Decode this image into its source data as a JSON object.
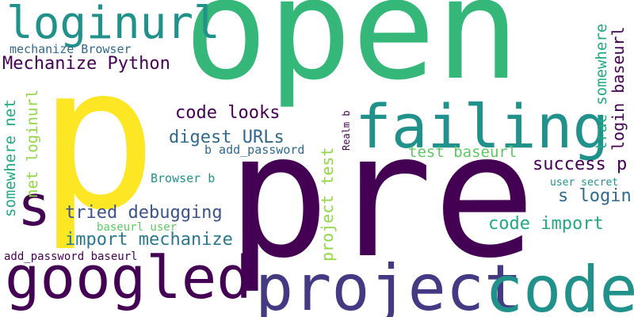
{
  "words": {
    "open": "open",
    "pre": "pre",
    "p": "p",
    "googled": "googled",
    "project": "project",
    "code": "code",
    "failing": "failing",
    "loginurl": "loginurl",
    "s": "s",
    "mechanize_python": "Mechanize Python",
    "mechanize_browser": "mechanize Browser",
    "code_looks": "code looks",
    "digest_urls": "digest URLs",
    "tried_debugging": "tried debugging",
    "import_mechanize": "import mechanize",
    "baseurl_user": "baseurl user",
    "add_password_baseurl": "add_password baseurl",
    "browser_b": "Browser b",
    "b_add_password": "b add_password",
    "test_baseurl": "test baseurl",
    "success_p": "success p",
    "s_login": "s login",
    "code_import": "code import",
    "user_secret": "user secret",
    "somewhere_net": "somewhere net",
    "net_loginurl": "net loginurl",
    "project_test": "project test",
    "realm_b": "Realm b",
    "trac_somewhere": "trac somewhere",
    "login_baseurl": "login baseurl"
  },
  "palette": {
    "green": "#35b779",
    "teal": "#21918c",
    "blue": "#31688e",
    "indigo": "#443983",
    "purple": "#440154",
    "yellow": "#fde725",
    "lime": "#90d743"
  }
}
